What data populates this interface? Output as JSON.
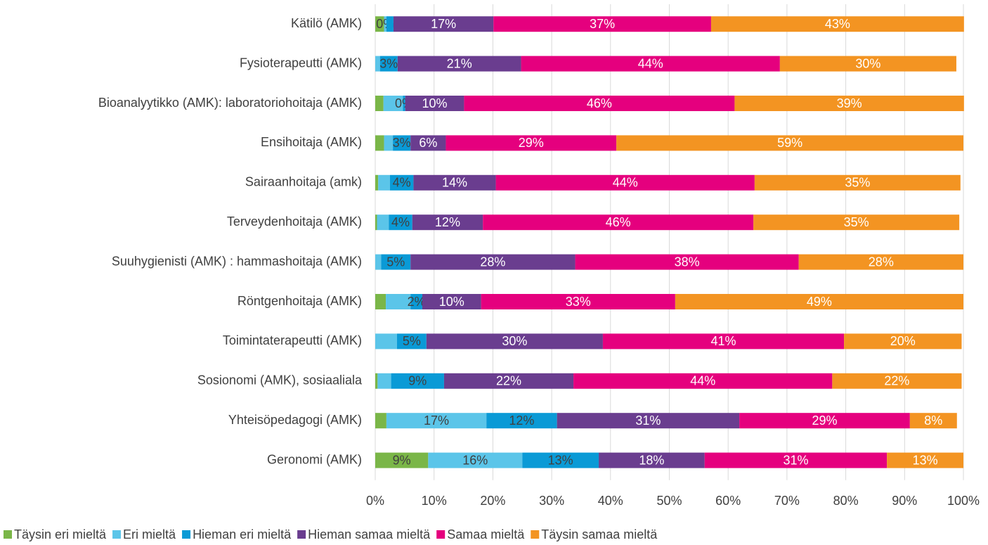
{
  "chart_data": {
    "type": "stacked_barh",
    "categories": [
      "Kätilö (AMK)",
      "Fysioterapeutti (AMK)",
      "Bioanalyytikko (AMK): laboratoriohoitaja (AMK)",
      "Ensihoitaja (AMK)",
      "Sairaanhoitaja (amk)",
      "Terveydenhoitaja (AMK)",
      "Suuhygienisti (AMK) : hammashoitaja (AMK)",
      "Röntgenhoitaja (AMK)",
      "Toimintaterapeutti (AMK)",
      "Sosionomi (AMK), sosiaaliala",
      "Yhteisöpedagogi (AMK)",
      "Geronomi (AMK)"
    ],
    "series": [
      {
        "name": "Täysin eri mieltä",
        "color": "#7ab648",
        "values": [
          1.5,
          0,
          1.4,
          1.5,
          0.5,
          0.3,
          0,
          1.8,
          0,
          0.4,
          1.9,
          9
        ],
        "value_labels": [
          null,
          null,
          null,
          null,
          null,
          null,
          null,
          null,
          null,
          null,
          null,
          "9%"
        ]
      },
      {
        "name": "Eri mieltä",
        "color": "#5bc5e9",
        "values": [
          0.4,
          0.8,
          3.3,
          1.5,
          2,
          2,
          1,
          4.2,
          3.7,
          2.3,
          17,
          16
        ],
        "value_labels": [
          "0%",
          null,
          null,
          null,
          null,
          null,
          null,
          null,
          null,
          null,
          "17%",
          "16%"
        ]
      },
      {
        "name": "Hieman eri mieltä",
        "color": "#0a9ad6",
        "values": [
          1.2,
          3,
          0.4,
          3,
          4,
          4,
          5,
          2,
          5,
          9,
          12,
          13
        ],
        "value_labels": [
          null,
          "3%",
          "0%",
          "3%",
          "4%",
          "4%",
          "5%",
          "2%",
          "5%",
          "9%",
          "12%",
          "13%"
        ]
      },
      {
        "name": "Hieman samaa mieltä",
        "color": "#6a3d8f",
        "values": [
          17,
          21,
          10,
          6,
          14,
          12,
          28,
          10,
          30,
          22,
          31,
          18
        ],
        "value_labels": [
          "17%",
          "21%",
          "10%",
          "6%",
          "14%",
          "12%",
          "28%",
          "10%",
          "30%",
          "22%",
          "31%",
          "18%"
        ]
      },
      {
        "name": "Samaa mieltä",
        "color": "#e5007e",
        "values": [
          37,
          44,
          46,
          29,
          44,
          46,
          38,
          33,
          41,
          44,
          29,
          31
        ],
        "value_labels": [
          "37%",
          "44%",
          "46%",
          "29%",
          "44%",
          "46%",
          "38%",
          "33%",
          "41%",
          "44%",
          "29%",
          "31%"
        ]
      },
      {
        "name": "Täysin samaa mieltä",
        "color": "#f39422",
        "values": [
          43,
          30,
          39,
          59,
          35,
          35,
          28,
          49,
          20,
          22,
          8,
          13
        ],
        "value_labels": [
          "43%",
          "30%",
          "39%",
          "59%",
          "35%",
          "35%",
          "28%",
          "49%",
          "20%",
          "22%",
          "8%",
          "13%"
        ]
      }
    ],
    "xlim": [
      0,
      100
    ],
    "xticks": [
      {
        "value": 0,
        "label": "0%"
      },
      {
        "value": 10,
        "label": "10%"
      },
      {
        "value": 20,
        "label": "20%"
      },
      {
        "value": 30,
        "label": "30%"
      },
      {
        "value": 40,
        "label": "40%"
      },
      {
        "value": 50,
        "label": "50%"
      },
      {
        "value": 60,
        "label": "60%"
      },
      {
        "value": 70,
        "label": "70%"
      },
      {
        "value": 80,
        "label": "80%"
      },
      {
        "value": 90,
        "label": "90%"
      },
      {
        "value": 100,
        "label": "100%"
      }
    ],
    "grid": true,
    "legend": "bottom"
  }
}
